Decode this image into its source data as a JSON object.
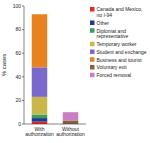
{
  "chart_data": {
    "type": "bar",
    "stacked": true,
    "categories": [
      "With authorization",
      "Without authorization"
    ],
    "series": [
      {
        "name": "Canada and Mexico,\nno I-94",
        "color": "#e8251f",
        "values": [
          2,
          0
        ]
      },
      {
        "name": "Other",
        "color": "#1f3a8f",
        "values": [
          3,
          0
        ]
      },
      {
        "name": "Diplomat and\nrepresentative",
        "color": "#3a9e5f",
        "values": [
          3,
          0
        ]
      },
      {
        "name": "Temporary worker",
        "color": "#c8b84a",
        "values": [
          15,
          0
        ]
      },
      {
        "name": "Student and exchange",
        "color": "#7b68cc",
        "values": [
          25,
          0
        ]
      },
      {
        "name": "Business and tourist",
        "color": "#e8821e",
        "values": [
          45,
          0
        ]
      },
      {
        "name": "Voluntary exit",
        "color": "#8b5e3c",
        "values": [
          0,
          3
        ]
      },
      {
        "name": "Forced removal",
        "color": "#c97fc4",
        "values": [
          0,
          7
        ]
      }
    ],
    "ylabel": "% cases",
    "ylim": [
      0,
      100
    ],
    "yticks": [
      0,
      20,
      40,
      60,
      80,
      100
    ],
    "legend": "right"
  }
}
